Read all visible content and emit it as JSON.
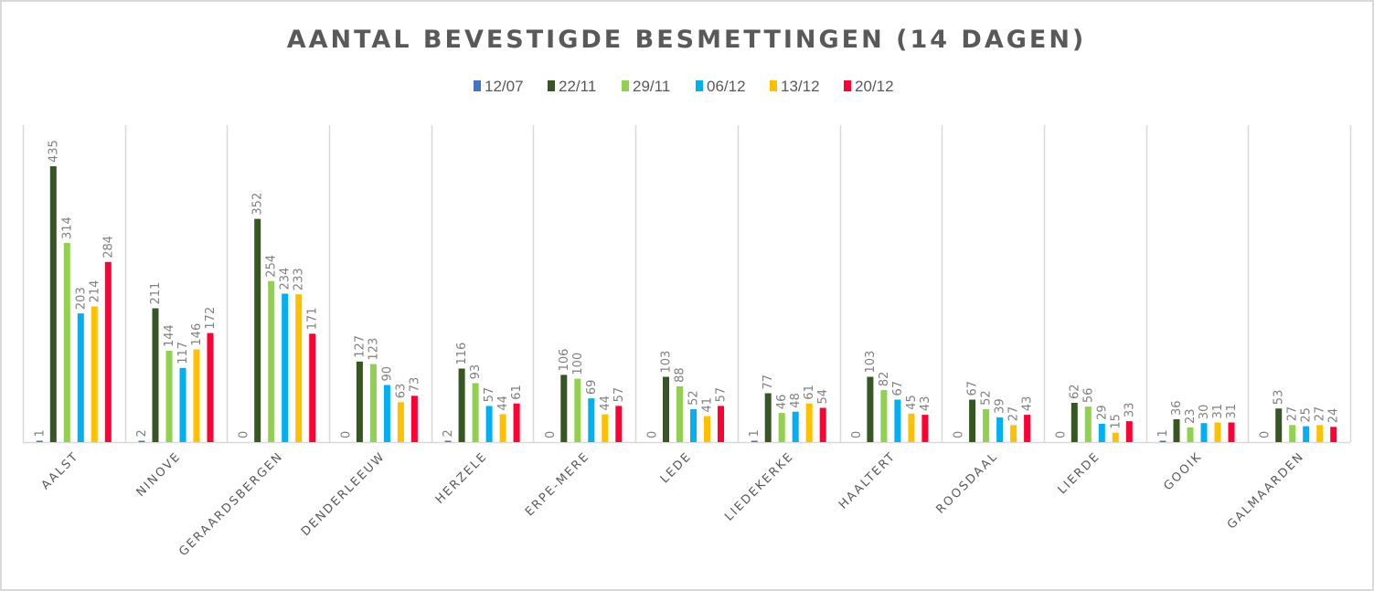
{
  "chart_data": {
    "type": "bar",
    "title": "AANTAL BEVESTIGDE BESMETTINGEN (14 DAGEN)",
    "xlabel": "",
    "ylabel": "",
    "ylim": [
      0,
      500
    ],
    "grid": "vertical category separators",
    "legend_position": "top",
    "categories": [
      "AALST",
      "NINOVE",
      "GERAARDSBERGEN",
      "DENDERLEEUW",
      "HERZELE",
      "ERPE-MERE",
      "LEDE",
      "LIEDEKERKE",
      "HAALTERT",
      "ROOSDAAL",
      "LIERDE",
      "GOOIK",
      "GALMAARDEN"
    ],
    "series": [
      {
        "name": "12/07",
        "color": "#4472c4",
        "values": [
          1,
          2,
          0,
          0,
          2,
          0,
          0,
          1,
          0,
          0,
          0,
          1,
          0
        ]
      },
      {
        "name": "22/11",
        "color": "#375623",
        "values": [
          435,
          211,
          352,
          127,
          116,
          106,
          103,
          77,
          103,
          67,
          62,
          36,
          53
        ]
      },
      {
        "name": "29/11",
        "color": "#92d050",
        "values": [
          314,
          144,
          254,
          123,
          93,
          100,
          88,
          46,
          82,
          52,
          56,
          23,
          27
        ]
      },
      {
        "name": "06/12",
        "color": "#00b0f0",
        "values": [
          203,
          117,
          234,
          90,
          57,
          69,
          52,
          48,
          67,
          39,
          29,
          30,
          25
        ]
      },
      {
        "name": "13/12",
        "color": "#ffc000",
        "values": [
          214,
          146,
          233,
          63,
          44,
          44,
          41,
          61,
          45,
          27,
          15,
          31,
          27
        ]
      },
      {
        "name": "20/12",
        "color": "#ff0033",
        "values": [
          284,
          172,
          171,
          73,
          61,
          57,
          57,
          54,
          43,
          43,
          33,
          31,
          24
        ]
      }
    ]
  }
}
